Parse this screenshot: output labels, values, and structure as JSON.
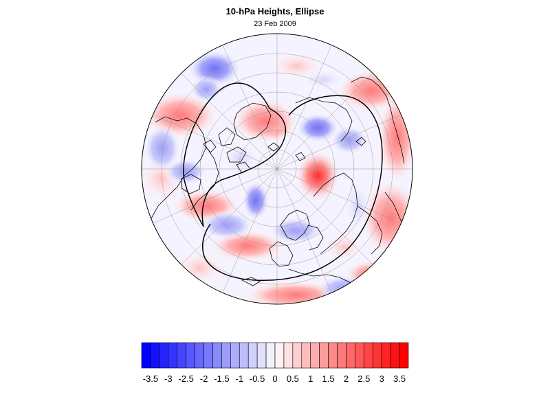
{
  "header": {
    "title": "10-hPa Heights, Ellipse",
    "date": "23 Feb 2009"
  },
  "colors": {
    "negative_max": "#0000ff",
    "neutral": "#ffffff",
    "positive_max": "#ff0000",
    "ellipse_line": "#000000",
    "coast_line": "#000000",
    "grid_line": "#9a9a9a"
  },
  "map": {
    "projection": "north-polar-orthographic",
    "grid": true,
    "overlay": "ellipse"
  },
  "colorbar": {
    "levels": [
      -3.75,
      -3.5,
      -3.25,
      -3,
      -2.75,
      -2.5,
      -2.25,
      -2,
      -1.75,
      -1.5,
      -1.25,
      -1,
      -0.75,
      -0.5,
      -0.25,
      0,
      0.25,
      0.5,
      0.75,
      1,
      1.25,
      1.5,
      1.75,
      2,
      2.25,
      2.5,
      2.75,
      3,
      3.25,
      3.5,
      3.75
    ],
    "ticks": [
      {
        "value": -3.5,
        "label": "-3.5"
      },
      {
        "value": -3,
        "label": "-3"
      },
      {
        "value": -2.5,
        "label": "-2.5"
      },
      {
        "value": -2,
        "label": "-2"
      },
      {
        "value": -1.5,
        "label": "-1.5"
      },
      {
        "value": -1,
        "label": "-1"
      },
      {
        "value": -0.5,
        "label": "-0.5"
      },
      {
        "value": 0,
        "label": "0"
      },
      {
        "value": 0.5,
        "label": "0.5"
      },
      {
        "value": 1,
        "label": "1"
      },
      {
        "value": 1.5,
        "label": "1.5"
      },
      {
        "value": 2,
        "label": "2"
      },
      {
        "value": 2.5,
        "label": "2.5"
      },
      {
        "value": 3,
        "label": "3"
      },
      {
        "value": 3.5,
        "label": "3.5"
      }
    ]
  }
}
